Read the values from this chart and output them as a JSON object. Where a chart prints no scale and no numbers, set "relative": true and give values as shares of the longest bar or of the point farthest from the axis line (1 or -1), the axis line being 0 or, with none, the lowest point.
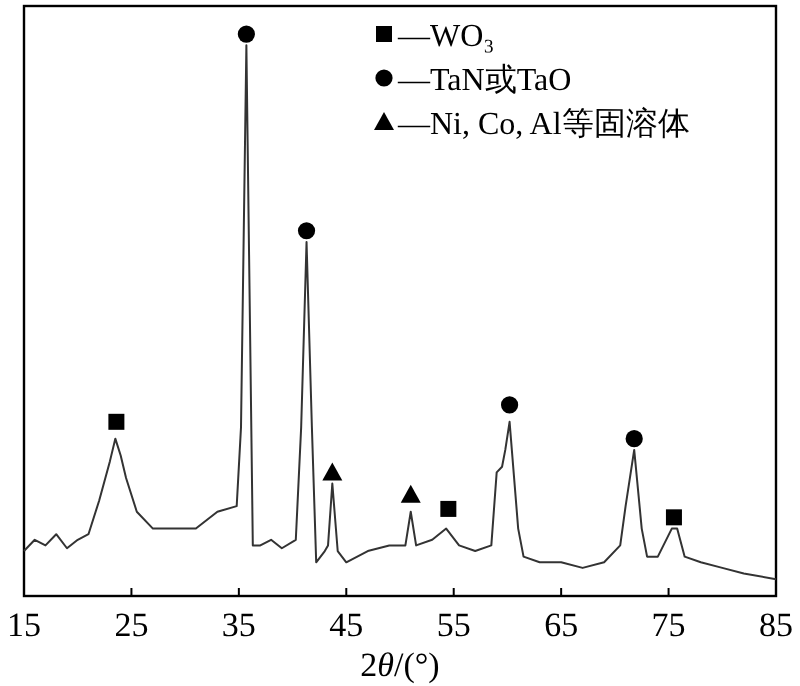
{
  "chart_data": {
    "type": "line",
    "relative": true,
    "xlabel": "2θ/(°)",
    "xlim": [
      15,
      85
    ],
    "xticks": [
      15,
      25,
      35,
      45,
      55,
      65,
      75,
      85
    ],
    "tick_labels": "x",
    "grid": false,
    "legend": "top right",
    "series": [
      {
        "type": "line",
        "color": "#333333",
        "marker": "none",
        "x": [
          15,
          16,
          17,
          18,
          19,
          20,
          21,
          22,
          23,
          23.5,
          24,
          24.5,
          25.5,
          27,
          29,
          31,
          33,
          34.8,
          35.2,
          35.7,
          36.3,
          37,
          38,
          39,
          40.3,
          40.8,
          41.3,
          41.8,
          42.2,
          43,
          43.3,
          43.7,
          44.2,
          45,
          47,
          49,
          50.5,
          51,
          51.5,
          53,
          54.3,
          55.5,
          57,
          58.5,
          59,
          59.5,
          59.8,
          60.2,
          61,
          61.5,
          63,
          65,
          67,
          69,
          70.5,
          71,
          71.8,
          72.5,
          73,
          74,
          75.3,
          75.8,
          76.5,
          78,
          80,
          82,
          85
        ],
        "values": [
          0.08,
          0.1,
          0.09,
          0.11,
          0.085,
          0.1,
          0.11,
          0.17,
          0.24,
          0.28,
          0.25,
          0.21,
          0.15,
          0.12,
          0.12,
          0.12,
          0.15,
          0.16,
          0.3,
          0.98,
          0.09,
          0.09,
          0.1,
          0.085,
          0.1,
          0.3,
          0.63,
          0.3,
          0.06,
          0.08,
          0.09,
          0.2,
          0.08,
          0.06,
          0.08,
          0.09,
          0.09,
          0.15,
          0.09,
          0.1,
          0.12,
          0.09,
          0.08,
          0.09,
          0.22,
          0.23,
          0.26,
          0.31,
          0.12,
          0.07,
          0.06,
          0.06,
          0.05,
          0.06,
          0.09,
          0.16,
          0.26,
          0.12,
          0.07,
          0.07,
          0.12,
          0.12,
          0.07,
          0.06,
          0.05,
          0.04,
          0.03
        ]
      },
      {
        "type": "scatter",
        "name": "—WO₃",
        "color": "#000000",
        "marker": "square",
        "x": [
          23.6,
          54.5,
          75.5
        ],
        "values": [
          0.31,
          0.155,
          0.14
        ]
      },
      {
        "type": "scatter",
        "name": "—TaN或TaO",
        "color": "#000000",
        "marker": "circle",
        "x": [
          35.7,
          41.3,
          60.2,
          71.8
        ],
        "values": [
          1.0,
          0.65,
          0.34,
          0.28
        ]
      },
      {
        "type": "scatter",
        "name": "—Ni, Co, Al等固溶体",
        "color": "#000000",
        "marker": "triangle",
        "x": [
          43.7,
          51
        ],
        "values": [
          0.22,
          0.18
        ]
      }
    ]
  }
}
